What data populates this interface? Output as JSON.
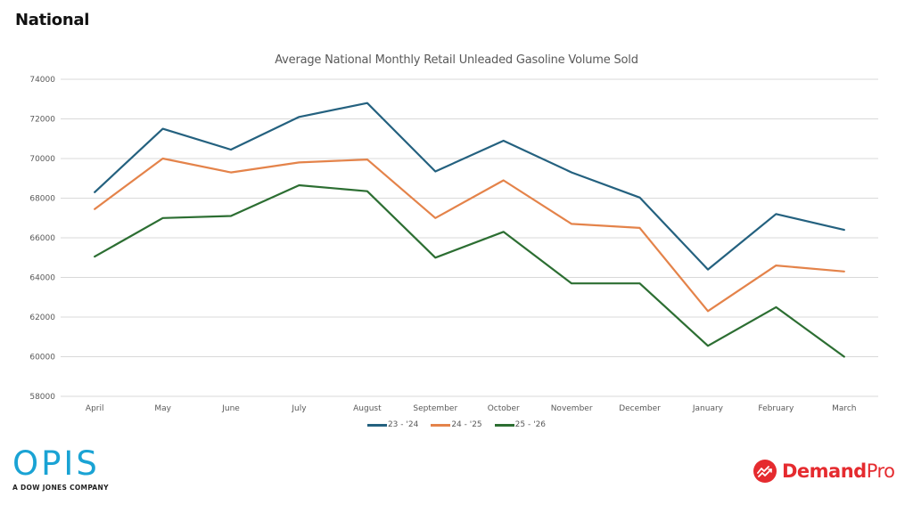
{
  "page": {
    "title": "National"
  },
  "logos": {
    "left": {
      "name": "OPIS",
      "tagline": "A DOW JONES COMPANY",
      "color": "#1aa3d4"
    },
    "right": {
      "name_bold": "Demand",
      "name_light": "Pro",
      "color": "#e52b2f"
    }
  },
  "chart_data": {
    "type": "line",
    "title": "Average National Monthly Retail Unleaded Gasoline Volume Sold",
    "xlabel": "",
    "ylabel": "",
    "categories": [
      "April",
      "May",
      "June",
      "July",
      "August",
      "September",
      "October",
      "November",
      "December",
      "January",
      "February",
      "March"
    ],
    "ylim": [
      58000,
      74000
    ],
    "yticks": [
      58000,
      60000,
      62000,
      64000,
      66000,
      68000,
      70000,
      72000,
      74000
    ],
    "ytick_labels": [
      "58000",
      "60000",
      "62000",
      "64000",
      "66000",
      "68000",
      "70000",
      "72000",
      "74000"
    ],
    "grid": true,
    "legend_position": "bottom-center",
    "series": [
      {
        "name": "23 - '24",
        "color": "#24617f",
        "values": [
          68300,
          71500,
          70450,
          72100,
          72800,
          69350,
          70900,
          69300,
          68030,
          64400,
          67200,
          66400
        ]
      },
      {
        "name": "24 - '25",
        "color": "#e4834a",
        "values": [
          67450,
          70000,
          69300,
          69800,
          69950,
          67000,
          68900,
          66700,
          66500,
          62300,
          64600,
          64300
        ]
      },
      {
        "name": "25 - '26",
        "color": "#2c6e32",
        "values": [
          65050,
          67000,
          67100,
          68650,
          68350,
          65000,
          66300,
          63700,
          63700,
          60550,
          62500,
          60000
        ]
      }
    ]
  }
}
